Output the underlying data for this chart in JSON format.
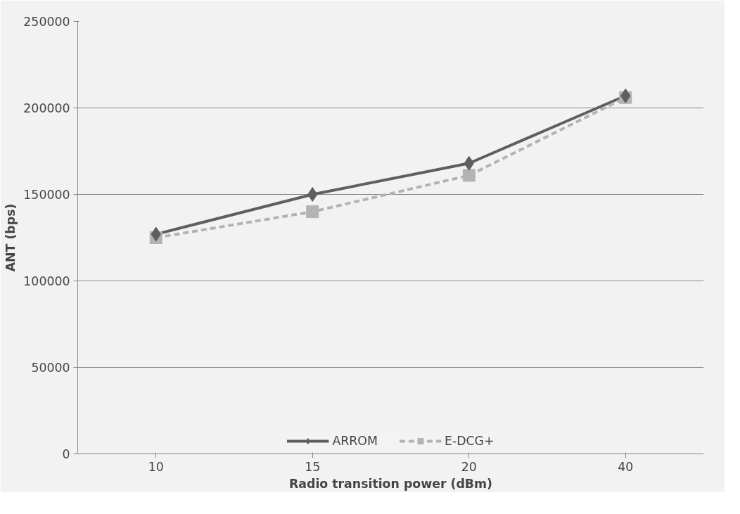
{
  "chart_data": {
    "type": "line",
    "xlabel": "Radio transition power (dBm)",
    "ylabel": "ANT (bps)",
    "categories": [
      "10",
      "15",
      "20",
      "40"
    ],
    "ylim": [
      0,
      250000
    ],
    "yticks": [
      0,
      50000,
      100000,
      150000,
      200000,
      250000
    ],
    "grid": "y",
    "legend": "bottom",
    "series": [
      {
        "name": "ARROM",
        "color": "#5f5f5f",
        "marker": "diamond",
        "line_style": "solid",
        "values": [
          127000,
          150000,
          168000,
          207000
        ]
      },
      {
        "name": "E-DCG+",
        "color": "#b3b3b3",
        "marker": "square",
        "line_style": "dashed",
        "values": [
          125000,
          140000,
          161000,
          206000
        ]
      }
    ]
  }
}
